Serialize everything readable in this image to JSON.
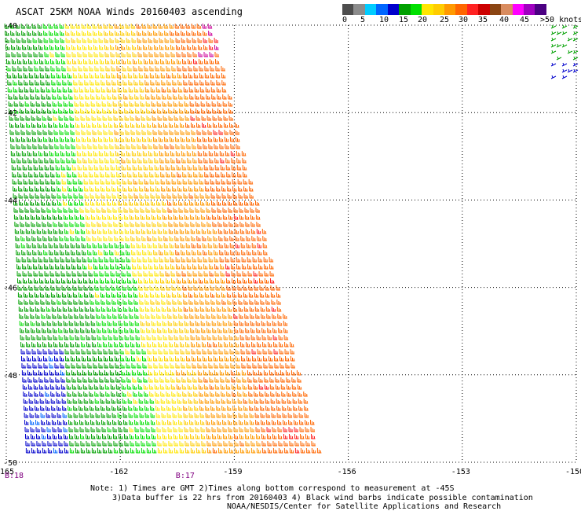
{
  "title": "ASCAT 25KM NOAA Winds 20160403 ascending",
  "colorbar": {
    "colors": [
      "#4d4d4d",
      "#8c8c8c",
      "#00ccff",
      "#0066ff",
      "#0000cc",
      "#00a000",
      "#00e000",
      "#ffe600",
      "#ffcc00",
      "#ff9900",
      "#ff6600",
      "#ff2222",
      "#cc0000",
      "#8b4513",
      "#d98c5f",
      "#ff00ff",
      "#a000c0",
      "#4b0082"
    ],
    "labels": [
      "0",
      "5",
      "10",
      "15",
      "20",
      "25",
      "30",
      "35",
      "40",
      "45",
      ">50 knots"
    ]
  },
  "chart_data": {
    "type": "wind-barb map",
    "x_ticks": [
      "-165",
      "-162",
      "-159",
      "-156",
      "-153",
      "-150"
    ],
    "y_ticks": [
      "-40",
      "-42",
      "-44",
      "-46",
      "-48",
      "-50"
    ],
    "xlim": [
      -165,
      -150
    ],
    "ylim": [
      -50,
      -40
    ],
    "gridlines": "dotted"
  },
  "passes": [
    {
      "label": "B:18",
      "lon": -165
    },
    {
      "label": "B:17",
      "lon": -160.5
    }
  ],
  "notes": [
    "Note: 1) Times are GMT 2)Times along bottom correspond to measurement at -45S",
    "3)Data buffer is 22 hrs from 20160403 4) Black wind barbs indicate possible contamination",
    "NOAA/NESDIS/Center for Satellite Applications and Research"
  ]
}
